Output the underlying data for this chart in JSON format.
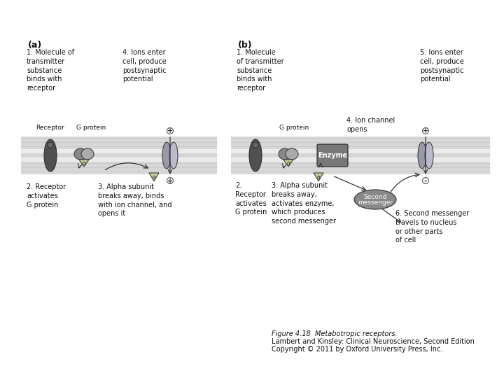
{
  "bg_color": "#ffffff",
  "fig_width": 7.2,
  "fig_height": 5.4,
  "dpi": 100,
  "caption_lines": [
    "Figure 4.18  Metabotropic receptors.",
    "Lambert and Kinsley: Clinical Neuroscience, Second Edition",
    "Copyright © 2011 by Oxford University Press, Inc."
  ],
  "panel_a_label": "(a)",
  "panel_b_label": "(b)",
  "membrane_color": "#cccccc",
  "membrane_light": "#e8e8e8",
  "receptor_dark": "#505050",
  "receptor_light": "#888888",
  "g_protein_color1": "#888888",
  "g_protein_color2": "#aaaaaa",
  "alpha_color": "#d0d0a0",
  "ion_channel_color1": "#9999aa",
  "ion_channel_color2": "#bbbbcc",
  "enzyme_color": "#787878",
  "second_messenger_color": "#888888",
  "arrow_color": "#333333",
  "text_color": "#111111",
  "caption_fontsize": 7.0
}
